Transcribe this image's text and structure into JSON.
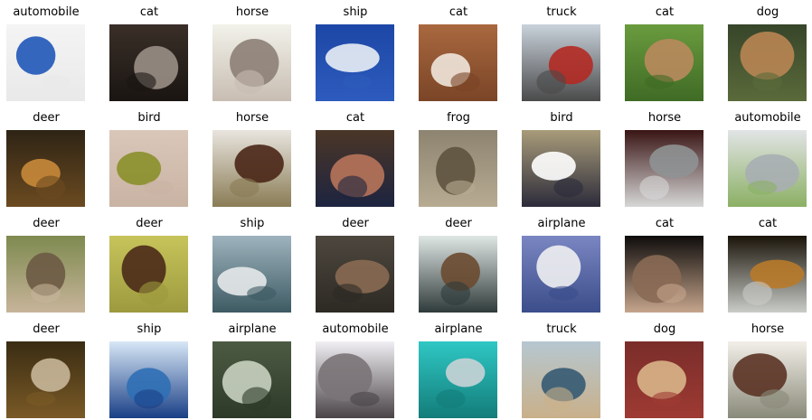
{
  "grid": {
    "rows": 4,
    "cols": 8,
    "items": [
      {
        "label": "automobile",
        "icon": "blue-car-photo",
        "colors": [
          "#f4f4f4",
          "#1f56b8",
          "#e9e9e9"
        ]
      },
      {
        "label": "cat",
        "icon": "cat-closeup-photo",
        "colors": [
          "#3a2f28",
          "#9a8f86",
          "#1a1512"
        ]
      },
      {
        "label": "horse",
        "icon": "horse-head-photo",
        "colors": [
          "#f2f2ea",
          "#8d7f76",
          "#c8bdb2"
        ]
      },
      {
        "label": "ship",
        "icon": "speedboat-photo",
        "colors": [
          "#1d47a6",
          "#e9eef5",
          "#2d5bbd"
        ]
      },
      {
        "label": "cat",
        "icon": "cat-faces-photo",
        "colors": [
          "#a9683f",
          "#efe6db",
          "#7a4527"
        ]
      },
      {
        "label": "truck",
        "icon": "fire-truck-photo",
        "colors": [
          "#c9d2db",
          "#b32a23",
          "#4a4a4a"
        ]
      },
      {
        "label": "cat",
        "icon": "cat-in-grass-photo",
        "colors": [
          "#6a9b3e",
          "#b9895d",
          "#3f6b25"
        ]
      },
      {
        "label": "dog",
        "icon": "dog-profile-photo",
        "colors": [
          "#37452a",
          "#b98553",
          "#5a6a3a"
        ]
      },
      {
        "label": "deer",
        "icon": "deer-head-photo",
        "colors": [
          "#2e2415",
          "#c88a3a",
          "#6b4a20"
        ]
      },
      {
        "label": "bird",
        "icon": "green-bird-photo",
        "colors": [
          "#dac7b9",
          "#8a8f2a",
          "#c9b3a3"
        ]
      },
      {
        "label": "horse",
        "icon": "brown-horse-photo",
        "colors": [
          "#e9e5df",
          "#4a2617",
          "#8a7c55"
        ]
      },
      {
        "label": "cat",
        "icon": "person-with-cat-photo",
        "colors": [
          "#4b3627",
          "#b8745a",
          "#1d2440"
        ]
      },
      {
        "label": "frog",
        "icon": "frog-photo",
        "colors": [
          "#8d8471",
          "#5e533f",
          "#b7ab92"
        ]
      },
      {
        "label": "bird",
        "icon": "bird-on-ground-photo",
        "colors": [
          "#a99c7a",
          "#ffffff",
          "#2c2b3a"
        ]
      },
      {
        "label": "horse",
        "icon": "gray-horse-photo",
        "colors": [
          "#3a1515",
          "#8f9294",
          "#d7d7d7"
        ]
      },
      {
        "label": "automobile",
        "icon": "silver-car-photo",
        "colors": [
          "#e2e4e6",
          "#a9aeb3",
          "#8bb064"
        ]
      },
      {
        "label": "deer",
        "icon": "deer-lying-photo",
        "colors": [
          "#7e8a4f",
          "#6d5a45",
          "#c7b49a"
        ]
      },
      {
        "label": "deer",
        "icon": "stag-photo",
        "colors": [
          "#c7c45b",
          "#4a2a18",
          "#9c9a3e"
        ]
      },
      {
        "label": "ship",
        "icon": "ship-on-water-photo",
        "colors": [
          "#9eb3bd",
          "#e5e9ea",
          "#3d5a63"
        ]
      },
      {
        "label": "deer",
        "icon": "deer-in-forest-photo",
        "colors": [
          "#4d473e",
          "#8a6a52",
          "#2d2a24"
        ]
      },
      {
        "label": "deer",
        "icon": "deer-in-snow-photo",
        "colors": [
          "#dfe7e4",
          "#6a4a30",
          "#2f3a3a"
        ]
      },
      {
        "label": "airplane",
        "icon": "airliner-photo",
        "colors": [
          "#7a86c2",
          "#f0f0f2",
          "#3b4d8a"
        ]
      },
      {
        "label": "cat",
        "icon": "cat-licking-photo",
        "colors": [
          "#0e0c0b",
          "#8a6a55",
          "#c6a58c"
        ]
      },
      {
        "label": "cat",
        "icon": "cat-sitting-photo",
        "colors": [
          "#1a1409",
          "#b87a2a",
          "#c9ccc8"
        ]
      },
      {
        "label": "deer",
        "icon": "deer-in-brush-photo",
        "colors": [
          "#3a2c13",
          "#c9b79a",
          "#7a5a26"
        ]
      },
      {
        "label": "ship",
        "icon": "cruise-ship-photo",
        "colors": [
          "#d7e7f6",
          "#2f6fb5",
          "#1a3f86"
        ]
      },
      {
        "label": "airplane",
        "icon": "fighter-jet-photo",
        "colors": [
          "#4d5a43",
          "#c9d2c0",
          "#2d3a28"
        ]
      },
      {
        "label": "automobile",
        "icon": "sports-car-photo",
        "colors": [
          "#f1eff3",
          "#7a7377",
          "#4a4448"
        ]
      },
      {
        "label": "airplane",
        "icon": "jet-over-sea-photo",
        "colors": [
          "#2fc7c4",
          "#c9d3d6",
          "#137d7a"
        ]
      },
      {
        "label": "truck",
        "icon": "blue-semi-truck-photo",
        "colors": [
          "#b6c7d0",
          "#355a72",
          "#c9b08a"
        ]
      },
      {
        "label": "dog",
        "icon": "chihuahua-photo",
        "colors": [
          "#7a2d2a",
          "#d9b58a",
          "#9e3a33"
        ]
      },
      {
        "label": "horse",
        "icon": "dark-horse-photo",
        "colors": [
          "#f2efe8",
          "#5a3324",
          "#8a8a7a"
        ]
      }
    ]
  }
}
